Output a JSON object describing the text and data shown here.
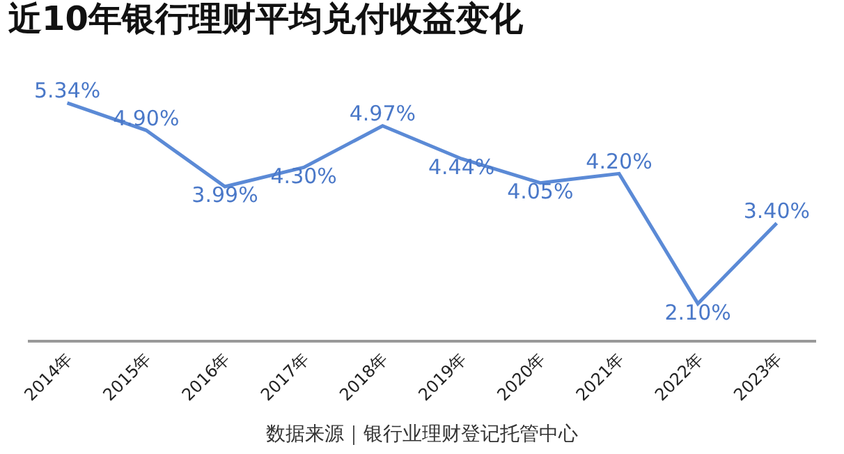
{
  "chart_data": {
    "type": "line",
    "title": "近10年银行理财平均兑付收益变化",
    "categories": [
      "2014年",
      "2015年",
      "2016年",
      "2017年",
      "2018年",
      "2019年",
      "2020年",
      "2021年",
      "2022年",
      "2023年"
    ],
    "series": [
      {
        "color": "#5b8ad6",
        "values": [
          5.34,
          4.9,
          3.99,
          4.3,
          4.97,
          4.44,
          4.05,
          4.2,
          2.1,
          3.4
        ],
        "value_labels": [
          "5.34%",
          "4.90%",
          "3.99%",
          "4.30%",
          "4.97%",
          "4.44%",
          "4.05%",
          "4.20%",
          "2.10%",
          "3.40%"
        ]
      }
    ],
    "marker": "none",
    "line_style": "solid",
    "legend": false,
    "annotations": [
      "数据来源｜银行业理财登记托管中心"
    ]
  }
}
